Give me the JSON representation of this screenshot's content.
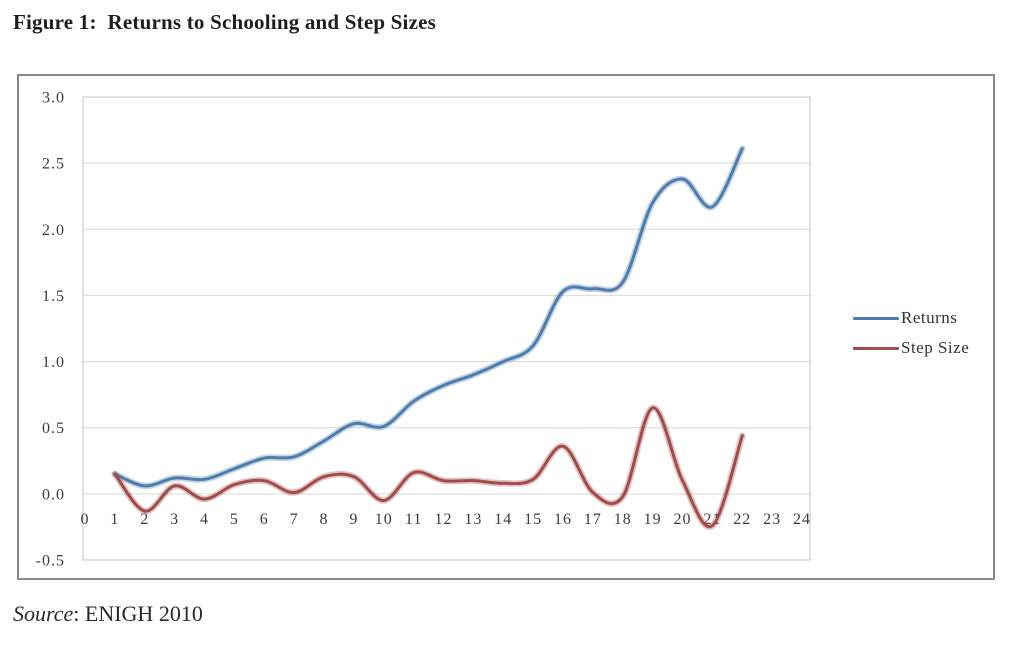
{
  "figure": {
    "title": "Figure 1:  Returns to Schooling and Step Sizes",
    "source_prefix": "Source",
    "source_rest": ": ENIGH 2010"
  },
  "chart_data": {
    "type": "line",
    "title": "Figure 1: Returns to Schooling and Step Sizes",
    "xlabel": "",
    "ylabel": "",
    "x": [
      1,
      2,
      3,
      4,
      5,
      6,
      7,
      8,
      9,
      10,
      11,
      12,
      13,
      14,
      15,
      16,
      17,
      18,
      19,
      20,
      21,
      22
    ],
    "series": [
      {
        "name": "Returns",
        "color": "#4d7dad",
        "values": [
          0.15,
          0.06,
          0.12,
          0.11,
          0.19,
          0.27,
          0.28,
          0.4,
          0.53,
          0.51,
          0.7,
          0.82,
          0.9,
          1.0,
          1.12,
          1.53,
          1.55,
          1.6,
          2.2,
          2.38,
          2.17,
          2.61
        ]
      },
      {
        "name": "Step Size",
        "color": "#a24c4a",
        "values": [
          0.15,
          -0.13,
          0.06,
          -0.04,
          0.07,
          0.1,
          0.01,
          0.13,
          0.13,
          -0.05,
          0.16,
          0.1,
          0.1,
          0.08,
          0.11,
          0.36,
          0.01,
          -0.02,
          0.65,
          0.1,
          -0.24,
          0.44
        ]
      }
    ],
    "xlim": [
      0,
      24
    ],
    "ylim": [
      -0.5,
      3.0
    ],
    "x_ticks": [
      "0",
      "1",
      "2",
      "3",
      "4",
      "5",
      "6",
      "7",
      "8",
      "9",
      "10",
      "11",
      "12",
      "13",
      "14",
      "15",
      "16",
      "17",
      "18",
      "19",
      "20",
      "21",
      "22",
      "23",
      "24"
    ],
    "y_ticks": [
      "3.0",
      "2.5",
      "2.0",
      "1.5",
      "1.0",
      "0.5",
      "0.0",
      "-0.5"
    ],
    "grid": "horizontal",
    "legend_position": "right"
  }
}
